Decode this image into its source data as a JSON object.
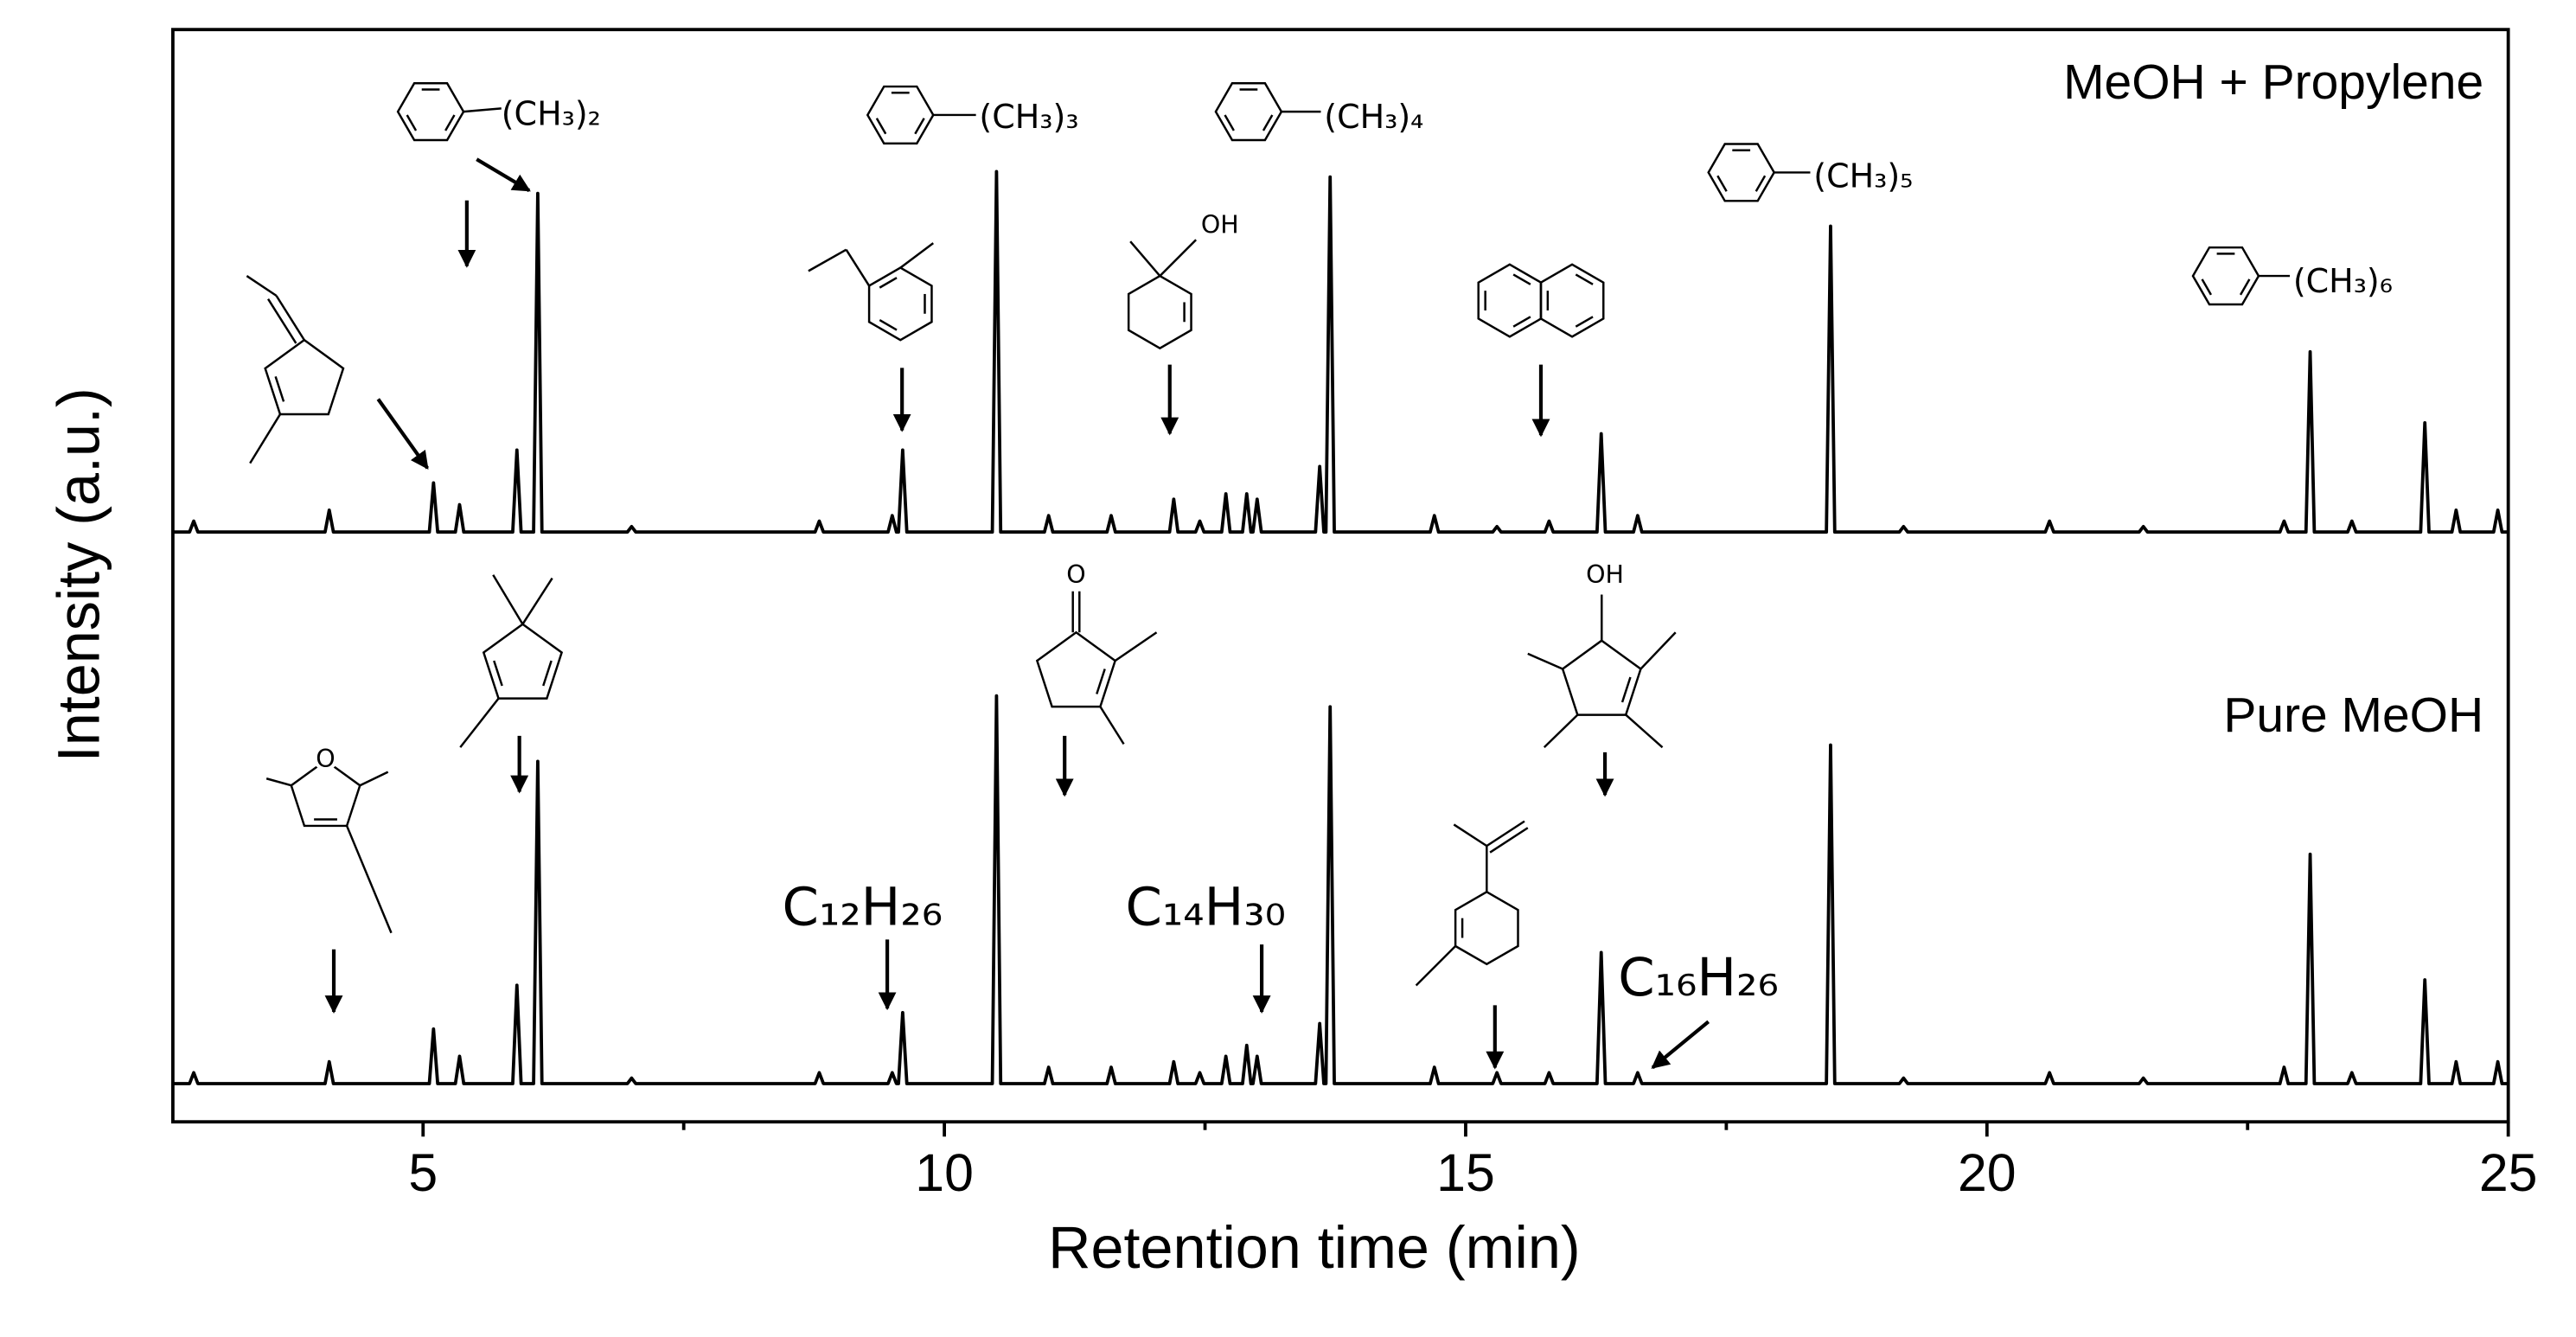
{
  "chart_data": {
    "type": "line",
    "xlabel": "Retention time (min)",
    "ylabel": "Intensity (a.u.)",
    "xlim": [
      2.6,
      25
    ],
    "xticks": [
      5,
      10,
      15,
      20,
      25
    ],
    "xminorticks": [
      7.5,
      12.5,
      17.5,
      22.5
    ],
    "ylim": [
      0,
      100
    ],
    "x": [
      2.6,
      2.76,
      2.8,
      2.84,
      4.06,
      4.1,
      4.14,
      5.06,
      5.1,
      5.14,
      5.31,
      5.35,
      5.39,
      5.86,
      5.9,
      5.94,
      6.06,
      6.1,
      6.14,
      6.96,
      7.0,
      7.04,
      8.76,
      8.8,
      8.84,
      9.46,
      9.5,
      9.54,
      9.56,
      9.6,
      9.64,
      10.46,
      10.5,
      10.54,
      10.96,
      11.0,
      11.04,
      11.56,
      11.6,
      11.64,
      12.16,
      12.2,
      12.24,
      12.41,
      12.45,
      12.49,
      12.66,
      12.7,
      12.74,
      12.86,
      12.9,
      12.94,
      12.96,
      13.0,
      13.04,
      13.56,
      13.6,
      13.64,
      13.66,
      13.7,
      13.74,
      14.66,
      14.7,
      14.74,
      15.26,
      15.3,
      15.34,
      15.76,
      15.8,
      15.84,
      16.26,
      16.3,
      16.34,
      16.61,
      16.65,
      16.69,
      18.46,
      18.5,
      18.54,
      19.16,
      19.2,
      19.24,
      20.56,
      20.6,
      20.64,
      21.46,
      21.5,
      21.54,
      22.81,
      22.85,
      22.89,
      23.06,
      23.1,
      23.14,
      23.46,
      23.5,
      23.54,
      24.16,
      24.2,
      24.24,
      24.46,
      24.5,
      24.54,
      24.86,
      24.9,
      24.94,
      25.0
    ],
    "series": [
      {
        "name": "MeOH + Propylene",
        "color": "#000000",
        "values": [
          8,
          8,
          10,
          8,
          8,
          12,
          8,
          8,
          17,
          8,
          8,
          13,
          8,
          8,
          23,
          8,
          8,
          70,
          8,
          8,
          9,
          8,
          8,
          10,
          8,
          8,
          11,
          8,
          8,
          23,
          8,
          8,
          74,
          8,
          8,
          11,
          8,
          8,
          11,
          8,
          8,
          14,
          8,
          8,
          10,
          8,
          8,
          15,
          8,
          8,
          15,
          8,
          8,
          14,
          8,
          8,
          20,
          8,
          8,
          73,
          8,
          8,
          11,
          8,
          8,
          9,
          8,
          8,
          10,
          8,
          8,
          26,
          8,
          8,
          11,
          8,
          8,
          64,
          8,
          8,
          9,
          8,
          8,
          10,
          8,
          8,
          9,
          8,
          8,
          10,
          8,
          8,
          41,
          8,
          8,
          10,
          8,
          8,
          28,
          8,
          8,
          12,
          8,
          8,
          12,
          8,
          8
        ]
      },
      {
        "name": "Pure MeOH",
        "color": "#000000",
        "values": [
          7,
          7,
          9,
          7,
          7,
          11,
          7,
          7,
          17,
          7,
          7,
          12,
          7,
          7,
          25,
          7,
          7,
          66,
          7,
          7,
          8,
          7,
          7,
          9,
          7,
          7,
          9,
          7,
          7,
          20,
          7,
          7,
          78,
          7,
          7,
          10,
          7,
          7,
          10,
          7,
          7,
          11,
          7,
          7,
          9,
          7,
          7,
          12,
          7,
          7,
          14,
          7,
          7,
          12,
          7,
          7,
          18,
          7,
          7,
          76,
          7,
          7,
          10,
          7,
          7,
          9,
          7,
          7,
          9,
          7,
          7,
          31,
          7,
          7,
          9,
          7,
          7,
          69,
          7,
          7,
          8,
          7,
          7,
          9,
          7,
          7,
          8,
          7,
          7,
          10,
          7,
          7,
          49,
          7,
          7,
          9,
          7,
          7,
          26,
          7,
          7,
          11,
          7,
          7,
          11,
          7,
          7
        ]
      }
    ],
    "annotations": [
      "(CH₃)₂",
      "(CH₃)₃",
      "(CH₃)₄",
      "(CH₃)₅",
      "(CH₃)₆",
      "OH",
      "O",
      "O",
      "OH",
      "C₁₂H₂₆",
      "C₁₄H₃₀",
      "C₁₆H₂₆"
    ]
  }
}
